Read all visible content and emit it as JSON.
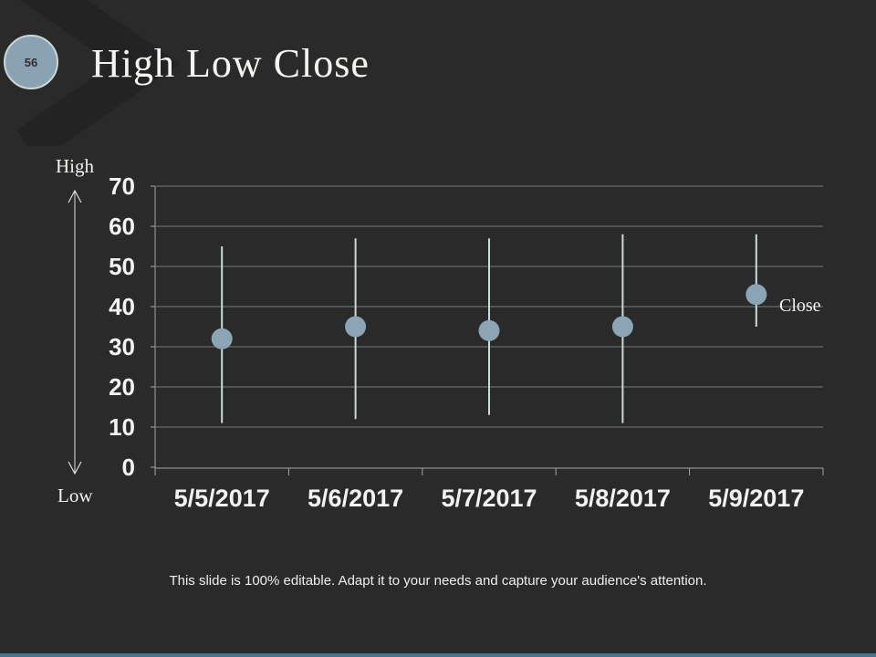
{
  "slide": {
    "page_number": "56",
    "title": "High Low Close",
    "footer": "This slide is 100% editable. Adapt it to your needs and capture your audience's attention."
  },
  "colors": {
    "background": "#2b2a2a",
    "badge_fill": "#8aa2b2",
    "badge_border": "#ccd6da",
    "gridline": "#7a7a7a",
    "axis_line": "#a6a6a6",
    "hilo_line": "#ccd9df",
    "close_dot": "#8ba5b5",
    "bottom_bar": "#45768e",
    "text": "#f2f2f2"
  },
  "chart_data": {
    "type": "hlc-stock",
    "title": "",
    "categories": [
      "5/5/2017",
      "5/6/2017",
      "5/7/2017",
      "5/8/2017",
      "5/9/2017"
    ],
    "series": [
      {
        "name": "High",
        "values": [
          55,
          57,
          57,
          58,
          58
        ]
      },
      {
        "name": "Low",
        "values": [
          11,
          12,
          13,
          11,
          35
        ]
      },
      {
        "name": "Close",
        "values": [
          32,
          35,
          34,
          35,
          43
        ]
      }
    ],
    "ylim": [
      0,
      70
    ],
    "ytick_step": 10,
    "grid": true,
    "legend_position": "none",
    "annotations": {
      "axis_top": "High",
      "axis_bottom": "Low",
      "last_point": "Close"
    }
  }
}
